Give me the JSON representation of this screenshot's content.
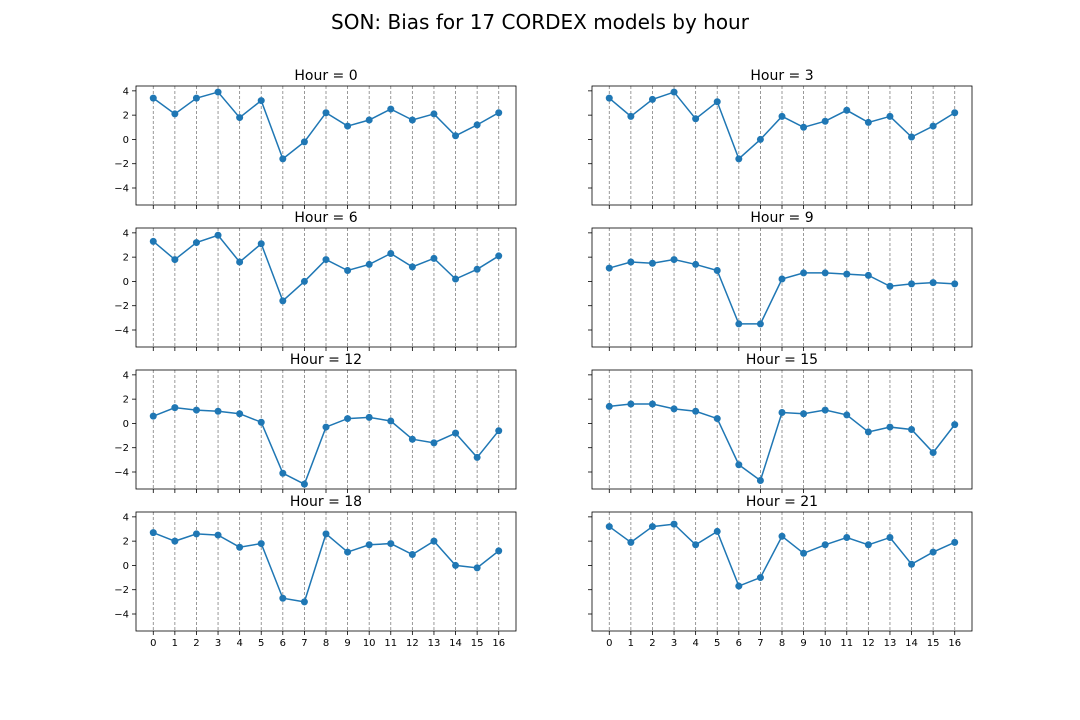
{
  "title": "SON: Bias for 17 CORDEX models by hour",
  "colors": {
    "series": "#1f77b4",
    "grid": "#808080",
    "axes": "#000000"
  },
  "chart_data": [
    {
      "type": "line",
      "title": "Hour = 0",
      "x": [
        0,
        1,
        2,
        3,
        4,
        5,
        6,
        7,
        8,
        9,
        10,
        11,
        12,
        13,
        14,
        15,
        16
      ],
      "values": [
        3.4,
        2.1,
        3.4,
        3.9,
        1.8,
        3.2,
        -1.6,
        -0.2,
        2.2,
        1.1,
        1.6,
        2.5,
        1.6,
        2.1,
        0.3,
        1.2,
        2.2
      ],
      "ylim": [
        -5.4,
        4.4
      ],
      "yticks": [
        -4,
        -2,
        0,
        2,
        4
      ],
      "xticks": [
        0,
        1,
        2,
        3,
        4,
        5,
        6,
        7,
        8,
        9,
        10,
        11,
        12,
        13,
        14,
        15,
        16
      ],
      "grid": "vertical dashed"
    },
    {
      "type": "line",
      "title": "Hour = 3",
      "x": [
        0,
        1,
        2,
        3,
        4,
        5,
        6,
        7,
        8,
        9,
        10,
        11,
        12,
        13,
        14,
        15,
        16
      ],
      "values": [
        3.4,
        1.9,
        3.3,
        3.9,
        1.7,
        3.1,
        -1.6,
        0.0,
        1.9,
        1.0,
        1.5,
        2.4,
        1.4,
        1.9,
        0.2,
        1.1,
        2.2
      ],
      "ylim": [
        -5.4,
        4.4
      ],
      "yticks": [
        -4,
        -2,
        0,
        2,
        4
      ],
      "xticks": [
        0,
        1,
        2,
        3,
        4,
        5,
        6,
        7,
        8,
        9,
        10,
        11,
        12,
        13,
        14,
        15,
        16
      ],
      "grid": "vertical dashed"
    },
    {
      "type": "line",
      "title": "Hour = 6",
      "x": [
        0,
        1,
        2,
        3,
        4,
        5,
        6,
        7,
        8,
        9,
        10,
        11,
        12,
        13,
        14,
        15,
        16
      ],
      "values": [
        3.3,
        1.8,
        3.2,
        3.8,
        1.6,
        3.1,
        -1.6,
        0.0,
        1.8,
        0.9,
        1.4,
        2.3,
        1.2,
        1.9,
        0.2,
        1.0,
        2.1
      ],
      "ylim": [
        -5.4,
        4.4
      ],
      "yticks": [
        -4,
        -2,
        0,
        2,
        4
      ],
      "xticks": [
        0,
        1,
        2,
        3,
        4,
        5,
        6,
        7,
        8,
        9,
        10,
        11,
        12,
        13,
        14,
        15,
        16
      ],
      "grid": "vertical dashed"
    },
    {
      "type": "line",
      "title": "Hour = 9",
      "x": [
        0,
        1,
        2,
        3,
        4,
        5,
        6,
        7,
        8,
        9,
        10,
        11,
        12,
        13,
        14,
        15,
        16
      ],
      "values": [
        1.1,
        1.6,
        1.5,
        1.8,
        1.4,
        0.9,
        -3.5,
        -3.5,
        0.2,
        0.7,
        0.7,
        0.6,
        0.5,
        -0.4,
        -0.2,
        -0.1,
        -0.2
      ],
      "ylim": [
        -5.4,
        4.4
      ],
      "yticks": [
        -4,
        -2,
        0,
        2,
        4
      ],
      "xticks": [
        0,
        1,
        2,
        3,
        4,
        5,
        6,
        7,
        8,
        9,
        10,
        11,
        12,
        13,
        14,
        15,
        16
      ],
      "grid": "vertical dashed"
    },
    {
      "type": "line",
      "title": "Hour = 12",
      "x": [
        0,
        1,
        2,
        3,
        4,
        5,
        6,
        7,
        8,
        9,
        10,
        11,
        12,
        13,
        14,
        15,
        16
      ],
      "values": [
        0.6,
        1.3,
        1.1,
        1.0,
        0.8,
        0.1,
        -4.1,
        -5.0,
        -0.3,
        0.4,
        0.5,
        0.2,
        -1.3,
        -1.6,
        -0.8,
        -2.8,
        -0.6
      ],
      "ylim": [
        -5.4,
        4.4
      ],
      "yticks": [
        -4,
        -2,
        0,
        2,
        4
      ],
      "xticks": [
        0,
        1,
        2,
        3,
        4,
        5,
        6,
        7,
        8,
        9,
        10,
        11,
        12,
        13,
        14,
        15,
        16
      ],
      "grid": "vertical dashed"
    },
    {
      "type": "line",
      "title": "Hour = 15",
      "x": [
        0,
        1,
        2,
        3,
        4,
        5,
        6,
        7,
        8,
        9,
        10,
        11,
        12,
        13,
        14,
        15,
        16
      ],
      "values": [
        1.4,
        1.6,
        1.6,
        1.2,
        1.0,
        0.4,
        -3.4,
        -4.7,
        0.9,
        0.8,
        1.1,
        0.7,
        -0.7,
        -0.3,
        -0.5,
        -2.4,
        -0.1
      ],
      "ylim": [
        -5.4,
        4.4
      ],
      "yticks": [
        -4,
        -2,
        0,
        2,
        4
      ],
      "xticks": [
        0,
        1,
        2,
        3,
        4,
        5,
        6,
        7,
        8,
        9,
        10,
        11,
        12,
        13,
        14,
        15,
        16
      ],
      "grid": "vertical dashed"
    },
    {
      "type": "line",
      "title": "Hour = 18",
      "x": [
        0,
        1,
        2,
        3,
        4,
        5,
        6,
        7,
        8,
        9,
        10,
        11,
        12,
        13,
        14,
        15,
        16
      ],
      "values": [
        2.7,
        2.0,
        2.6,
        2.5,
        1.5,
        1.8,
        -2.7,
        -3.0,
        2.6,
        1.1,
        1.7,
        1.8,
        0.9,
        2.0,
        0.0,
        -0.2,
        1.2
      ],
      "ylim": [
        -5.4,
        4.4
      ],
      "yticks": [
        -4,
        -2,
        0,
        2,
        4
      ],
      "xticks": [
        0,
        1,
        2,
        3,
        4,
        5,
        6,
        7,
        8,
        9,
        10,
        11,
        12,
        13,
        14,
        15,
        16
      ],
      "grid": "vertical dashed"
    },
    {
      "type": "line",
      "title": "Hour = 21",
      "x": [
        0,
        1,
        2,
        3,
        4,
        5,
        6,
        7,
        8,
        9,
        10,
        11,
        12,
        13,
        14,
        15,
        16
      ],
      "values": [
        3.2,
        1.9,
        3.2,
        3.4,
        1.7,
        2.8,
        -1.7,
        -1.0,
        2.4,
        1.0,
        1.7,
        2.3,
        1.7,
        2.3,
        0.1,
        1.1,
        1.9
      ],
      "ylim": [
        -5.4,
        4.4
      ],
      "yticks": [
        -4,
        -2,
        0,
        2,
        4
      ],
      "xticks": [
        0,
        1,
        2,
        3,
        4,
        5,
        6,
        7,
        8,
        9,
        10,
        11,
        12,
        13,
        14,
        15,
        16
      ],
      "grid": "vertical dashed"
    }
  ]
}
